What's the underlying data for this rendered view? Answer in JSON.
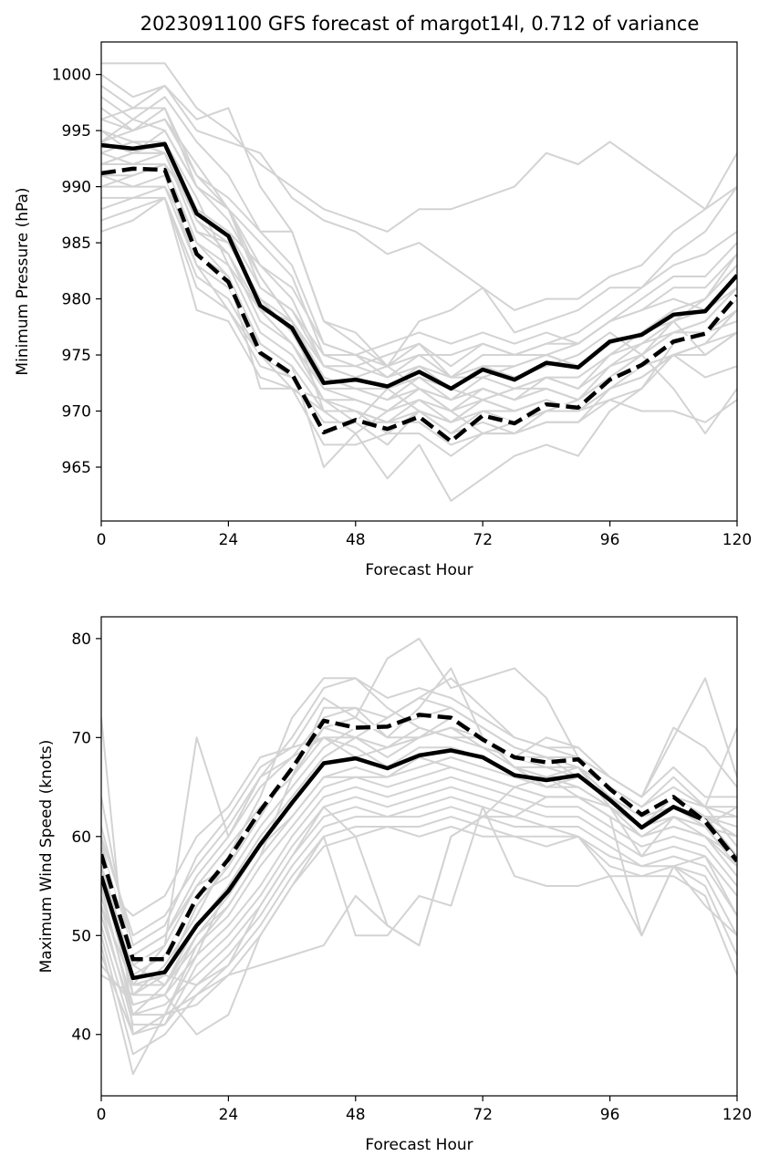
{
  "title": "2023091100 GFS forecast of margot14l, 0.712 of variance",
  "colors": {
    "ensemble": "#d3d3d3",
    "main": "#000000",
    "dash_gap": "#ffffff"
  },
  "chart_data": [
    {
      "type": "line",
      "xlabel": "Forecast Hour",
      "ylabel": "Minimum Pressure (hPa)",
      "xlim": [
        0,
        120
      ],
      "ylim": [
        960.2,
        1002.9
      ],
      "xticks": [
        0,
        24,
        48,
        72,
        96,
        120
      ],
      "yticks": [
        965,
        970,
        975,
        980,
        985,
        990,
        995,
        1000
      ],
      "x": [
        0,
        6,
        12,
        18,
        24,
        30,
        36,
        42,
        48,
        54,
        60,
        66,
        72,
        78,
        84,
        90,
        96,
        102,
        108,
        114,
        120
      ],
      "series": [
        {
          "style": "solid",
          "values": [
            993.7,
            993.4,
            993.8,
            987.6,
            985.6,
            979.4,
            977.4,
            972.5,
            972.8,
            972.2,
            973.5,
            972.0,
            973.7,
            972.8,
            974.3,
            973.9,
            976.2,
            976.8,
            978.6,
            978.9,
            982.1
          ]
        },
        {
          "style": "dashed",
          "values": [
            991.2,
            991.6,
            991.5,
            984.0,
            981.5,
            975.2,
            973.3,
            968.1,
            969.2,
            968.4,
            969.5,
            967.3,
            969.6,
            968.9,
            970.6,
            970.3,
            972.8,
            974.1,
            976.2,
            976.9,
            980.3
          ]
        }
      ],
      "ensemble": [
        [
          1001,
          1001,
          1001,
          997,
          995,
          992,
          990,
          988,
          987,
          986,
          988,
          988,
          989,
          990,
          993,
          992,
          994,
          992,
          990,
          988,
          993
        ],
        [
          1000,
          998,
          999,
          996,
          997,
          990,
          986,
          978,
          976,
          974,
          972,
          970,
          968,
          969,
          970,
          970,
          972,
          973,
          975,
          976,
          979
        ],
        [
          999,
          997,
          999,
          995,
          994,
          993,
          989,
          987,
          986,
          984,
          985,
          983,
          981,
          979,
          980,
          980,
          982,
          983,
          986,
          988,
          990
        ],
        [
          998,
          996,
          998,
          994,
          991,
          986,
          983,
          976,
          975,
          973,
          974,
          972,
          971,
          972,
          973,
          972,
          975,
          977,
          979,
          980,
          983
        ],
        [
          997,
          995,
          997,
          991,
          988,
          983,
          980,
          974,
          973,
          972,
          973,
          971,
          972,
          971,
          973,
          973,
          975,
          976,
          978,
          979,
          982
        ],
        [
          996,
          995,
          996,
          991,
          989,
          986,
          986,
          978,
          977,
          974,
          978,
          979,
          981,
          977,
          978,
          979,
          981,
          981,
          983,
          984,
          986
        ],
        [
          995,
          993,
          995,
          990,
          987,
          982,
          978,
          973,
          972,
          971,
          972,
          970,
          972,
          971,
          972,
          971,
          974,
          976,
          977,
          978,
          981
        ],
        [
          994,
          993,
          994,
          988,
          986,
          981,
          979,
          974,
          974,
          973,
          975,
          973,
          973,
          972,
          973,
          972,
          974,
          975,
          977,
          977,
          980
        ],
        [
          993,
          992,
          993,
          987,
          985,
          980,
          978,
          973,
          972,
          972,
          974,
          973,
          974,
          974,
          975,
          974,
          976,
          977,
          979,
          980,
          983
        ],
        [
          992,
          993,
          993,
          986,
          984,
          978,
          976,
          972,
          971,
          970,
          972,
          971,
          973,
          974,
          975,
          976,
          978,
          979,
          981,
          981,
          984
        ],
        [
          991,
          991,
          992,
          985,
          983,
          977,
          975,
          971,
          971,
          970,
          971,
          969,
          970,
          970,
          971,
          970,
          973,
          975,
          977,
          978,
          981
        ],
        [
          990,
          990,
          991,
          983,
          981,
          976,
          974,
          970,
          970,
          969,
          970,
          968,
          970,
          969,
          970,
          970,
          972,
          974,
          976,
          977,
          979
        ],
        [
          989,
          989,
          990,
          983,
          979,
          975,
          973,
          969,
          969,
          969,
          969,
          967,
          968,
          968,
          969,
          969,
          972,
          973,
          975,
          976,
          979
        ],
        [
          988,
          989,
          989,
          982,
          980,
          975,
          972,
          970,
          968,
          970,
          972,
          971,
          972,
          971,
          972,
          971,
          973,
          974,
          976,
          977,
          978
        ],
        [
          987,
          988,
          989,
          981,
          979,
          974,
          973,
          968,
          969,
          967,
          970,
          969,
          971,
          970,
          971,
          970,
          972,
          973,
          975,
          975,
          977
        ],
        [
          986,
          987,
          989,
          979,
          978,
          973,
          972,
          967,
          967,
          968,
          968,
          966,
          968,
          968,
          969,
          969,
          971,
          972,
          975,
          976,
          977
        ],
        [
          992,
          992,
          992,
          984,
          982,
          976,
          974,
          965,
          968,
          964,
          967,
          962,
          964,
          966,
          967,
          966,
          970,
          972,
          976,
          977,
          979
        ],
        [
          995,
          994,
          994,
          989,
          983,
          979,
          978,
          974,
          973,
          974,
          975,
          975,
          976,
          975,
          975,
          974,
          976,
          977,
          978,
          975,
          977
        ],
        [
          994,
          996,
          995,
          990,
          988,
          985,
          982,
          975,
          975,
          976,
          977,
          976,
          977,
          976,
          977,
          976,
          978,
          979,
          980,
          979,
          981
        ],
        [
          991,
          990,
          990,
          985,
          982,
          972,
          972,
          971,
          970,
          969,
          971,
          970,
          971,
          970,
          971,
          970,
          971,
          970,
          970,
          969,
          971
        ],
        [
          993,
          994,
          993,
          986,
          985,
          980,
          977,
          972,
          972,
          971,
          973,
          972,
          974,
          973,
          974,
          975,
          977,
          975,
          972,
          968,
          972
        ],
        [
          990,
          991,
          992,
          988,
          986,
          983,
          981,
          976,
          975,
          974,
          976,
          973,
          975,
          975,
          976,
          976,
          978,
          980,
          982,
          982,
          985
        ],
        [
          996,
          997,
          997,
          990,
          988,
          982,
          978,
          970,
          970,
          968,
          970,
          969,
          971,
          972,
          972,
          971,
          973,
          974,
          975,
          973,
          974
        ],
        [
          992,
          993,
          993,
          987,
          984,
          979,
          976,
          971,
          969,
          972,
          970,
          968,
          969,
          968,
          970,
          971,
          973,
          975,
          978,
          980,
          984
        ],
        [
          994,
          995,
          996,
          992,
          988,
          981,
          979,
          975,
          974,
          975,
          976,
          974,
          976,
          975,
          976,
          977,
          979,
          981,
          984,
          986,
          990
        ]
      ]
    },
    {
      "type": "line",
      "xlabel": "Forecast Hour",
      "ylabel": "Maximum Wind Speed (knots)",
      "xlim": [
        0,
        120
      ],
      "ylim": [
        33.8,
        82.2
      ],
      "xticks": [
        0,
        24,
        48,
        72,
        96,
        120
      ],
      "yticks": [
        40,
        50,
        60,
        70,
        80
      ],
      "x": [
        0,
        6,
        12,
        18,
        24,
        30,
        36,
        42,
        48,
        54,
        60,
        66,
        72,
        78,
        84,
        90,
        96,
        102,
        108,
        114,
        120
      ],
      "series": [
        {
          "style": "solid",
          "values": [
            56.0,
            45.7,
            46.3,
            51.0,
            54.5,
            59.2,
            63.4,
            67.4,
            67.9,
            66.9,
            68.2,
            68.7,
            68.0,
            66.2,
            65.7,
            66.2,
            63.7,
            60.9,
            63.0,
            61.6,
            57.6
          ]
        },
        {
          "style": "dashed",
          "values": [
            58.2,
            47.6,
            47.6,
            53.8,
            57.7,
            62.6,
            66.9,
            71.7,
            71.0,
            71.1,
            72.3,
            72.0,
            69.8,
            68.0,
            67.5,
            67.8,
            64.8,
            62.2,
            64.0,
            61.5,
            57.5
          ]
        }
      ],
      "ensemble": [
        [
          72,
          40,
          42,
          48,
          55,
          60,
          64,
          68,
          70,
          72,
          74,
          73,
          71,
          69,
          68,
          67,
          65,
          62,
          64,
          62,
          58
        ],
        [
          64,
          47,
          49,
          70,
          60,
          66,
          70,
          75,
          76,
          74,
          75,
          74,
          72,
          70,
          69,
          68,
          65,
          63,
          65,
          63,
          59
        ],
        [
          60,
          44,
          47,
          52,
          58,
          64,
          72,
          76,
          76,
          73,
          71,
          70,
          70,
          67,
          66,
          66,
          64,
          61,
          63,
          62,
          61
        ],
        [
          58,
          45,
          46,
          53,
          57,
          63,
          66,
          71,
          72,
          78,
          80,
          75,
          76,
          77,
          74,
          68,
          66,
          64,
          70,
          76,
          66
        ],
        [
          57,
          45,
          45,
          51,
          55,
          60,
          64,
          68,
          70,
          69,
          70,
          71,
          70,
          68,
          67,
          66,
          64,
          62,
          63,
          62,
          60
        ],
        [
          56,
          44,
          44,
          50,
          53,
          58,
          62,
          66,
          67,
          66,
          67,
          68,
          67,
          66,
          65,
          65,
          63,
          61,
          62,
          61,
          57
        ],
        [
          55,
          42,
          42,
          49,
          52,
          57,
          61,
          65,
          66,
          65,
          66,
          67,
          66,
          65,
          64,
          64,
          62,
          60,
          61,
          60,
          56
        ],
        [
          54,
          43,
          44,
          48,
          51,
          55,
          60,
          64,
          65,
          64,
          65,
          66,
          65,
          64,
          63,
          63,
          61,
          59,
          60,
          59,
          55
        ],
        [
          53,
          41,
          41,
          47,
          50,
          54,
          59,
          63,
          64,
          63,
          64,
          65,
          64,
          63,
          62,
          62,
          60,
          58,
          59,
          58,
          54
        ],
        [
          52,
          42,
          43,
          46,
          49,
          53,
          58,
          62,
          63,
          62,
          63,
          64,
          63,
          62,
          61,
          61,
          59,
          57,
          58,
          57,
          52
        ],
        [
          51,
          40,
          41,
          45,
          48,
          52,
          57,
          61,
          62,
          62,
          62,
          63,
          62,
          61,
          61,
          60,
          58,
          57,
          57,
          56,
          50
        ],
        [
          50,
          38,
          40,
          44,
          47,
          51,
          56,
          60,
          61,
          61,
          61,
          62,
          61,
          60,
          60,
          60,
          57,
          56,
          57,
          55,
          48
        ],
        [
          49,
          36,
          42,
          43,
          46,
          50,
          55,
          59,
          60,
          61,
          60,
          61,
          60,
          60,
          59,
          60,
          56,
          56,
          56,
          54,
          46
        ],
        [
          48,
          40,
          42,
          44,
          46,
          47,
          48,
          49,
          54,
          51,
          49,
          60,
          62,
          62,
          64,
          64,
          62,
          50,
          57,
          53,
          50
        ],
        [
          47,
          43,
          44,
          40,
          42,
          50,
          55,
          60,
          50,
          50,
          54,
          53,
          63,
          56,
          55,
          55,
          56,
          50,
          57,
          58,
          52
        ],
        [
          46,
          44,
          46,
          45,
          47,
          53,
          58,
          63,
          60,
          51,
          49,
          60,
          62,
          65,
          66,
          64,
          63,
          58,
          62,
          60,
          58
        ],
        [
          55,
          47,
          45,
          49,
          53,
          58,
          66,
          73,
          73,
          70,
          70,
          71,
          69,
          68,
          68,
          66,
          64,
          62,
          64,
          62,
          62
        ],
        [
          57,
          46,
          48,
          54,
          56,
          61,
          65,
          69,
          71,
          71,
          72,
          73,
          71,
          69,
          68,
          68,
          65,
          63,
          66,
          63,
          63
        ],
        [
          59,
          48,
          50,
          56,
          60,
          65,
          68,
          72,
          73,
          72,
          74,
          76,
          73,
          70,
          69,
          69,
          66,
          64,
          67,
          64,
          64
        ],
        [
          61,
          49,
          51,
          58,
          62,
          67,
          69,
          70,
          70,
          68,
          70,
          72,
          70,
          67,
          67,
          67,
          63,
          61,
          64,
          63,
          62
        ],
        [
          53,
          45,
          49,
          55,
          59,
          63,
          66,
          70,
          69,
          67,
          69,
          69,
          68,
          66,
          66,
          65,
          63,
          60,
          62,
          61,
          60
        ],
        [
          52,
          42,
          45,
          50,
          54,
          59,
          62,
          66,
          66,
          66,
          68,
          67,
          66,
          65,
          64,
          64,
          62,
          60,
          61,
          60,
          57
        ],
        [
          55,
          52,
          54,
          60,
          63,
          68,
          69,
          74,
          72,
          70,
          73,
          77,
          70,
          68,
          70,
          69,
          66,
          64,
          71,
          69,
          65
        ],
        [
          60,
          50,
          52,
          57,
          61,
          66,
          68,
          70,
          68,
          69,
          71,
          70,
          69,
          67,
          65,
          66,
          64,
          62,
          63,
          61,
          63
        ],
        [
          58,
          48,
          50,
          55,
          57,
          62,
          67,
          71,
          70,
          69,
          70,
          71,
          70,
          67,
          66,
          67,
          64,
          61,
          64,
          63,
          71
        ]
      ]
    }
  ]
}
